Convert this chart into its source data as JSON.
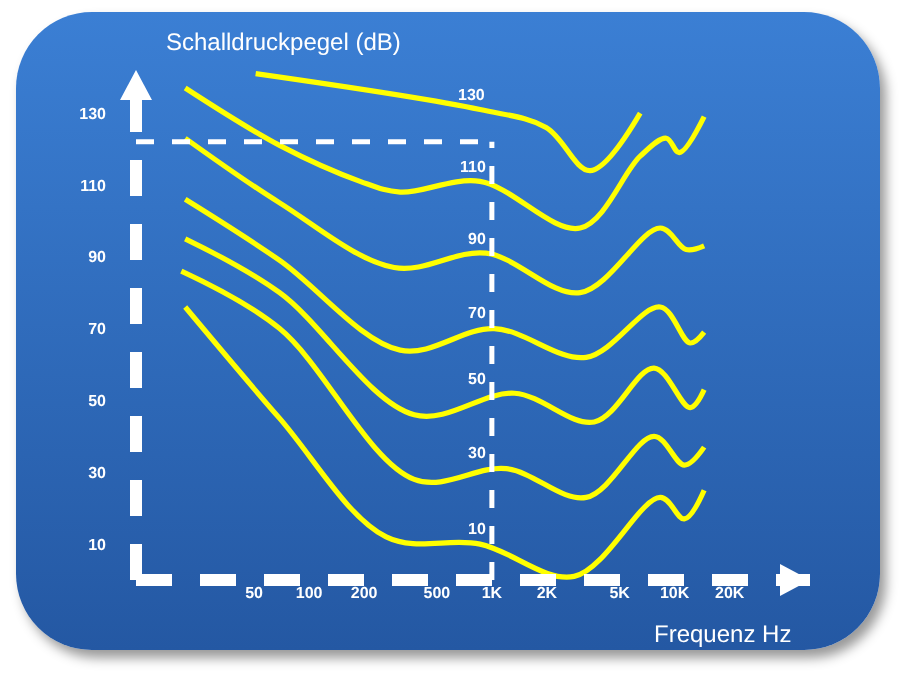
{
  "chart_data": {
    "type": "line",
    "xlabel": "Frequenz Hz",
    "ylabel": "Schalldruckpegel (dB)",
    "log": "x",
    "xlim": [
      11.3,
      55000
    ],
    "ylim": [
      0,
      142
    ],
    "xticks": [
      50,
      100,
      200,
      500,
      {
        "value": 1000,
        "label": "1K"
      },
      {
        "value": 2000,
        "label": "2K"
      },
      {
        "value": 5000,
        "label": "5K"
      },
      {
        "value": 10000,
        "label": "10K"
      },
      {
        "value": 20000,
        "label": "20K"
      }
    ],
    "yticks": [
      10,
      30,
      50,
      70,
      90,
      110,
      130
    ],
    "grid": false,
    "legend": false,
    "marker": "none",
    "line_style": "solid",
    "ref_lines": [
      {
        "axis": "x",
        "value": 1000,
        "color": "#ffffff",
        "line_style": "dashed"
      },
      {
        "axis": "y",
        "value": 122,
        "color": "#ffffff",
        "line_style": "dashed"
      }
    ],
    "series": [
      {
        "name": "130",
        "color": "#ffff00",
        "x": [
          51,
          862,
          1980,
          3450,
          6480
        ],
        "values": [
          141,
          131,
          126,
          114,
          130
        ]
      },
      {
        "name": "110",
        "color": "#ffff00",
        "x": [
          21,
          69,
          190,
          315,
          862,
          3040,
          6480,
          9000,
          10600,
          14500
        ],
        "values": [
          137,
          121,
          111,
          108,
          111,
          98,
          118,
          123,
          119,
          129
        ]
      },
      {
        "name": "90",
        "color": "#ffff00",
        "x": [
          21,
          69,
          292,
          930,
          3040,
          8340,
          11550,
          14500
        ],
        "values": [
          123,
          105,
          87,
          91,
          80,
          98,
          92,
          93
        ]
      },
      {
        "name": "70",
        "color": "#ffff00",
        "x": [
          21,
          69,
          315,
          1030,
          3280,
          8340,
          12150,
          14500
        ],
        "values": [
          106,
          89,
          64,
          70,
          62,
          76,
          66,
          69
        ]
      },
      {
        "name": "50",
        "color": "#ffff00",
        "x": [
          21,
          69,
          376,
          1330,
          3630,
          7720,
          12150,
          14500
        ],
        "values": [
          95,
          80,
          46,
          52,
          44,
          59,
          48,
          53
        ]
      },
      {
        "name": "30",
        "color": "#ffff00",
        "x": [
          20,
          69,
          376,
          1200,
          3280,
          7720,
          11300,
          14500
        ],
        "values": [
          86,
          70,
          28,
          31,
          23,
          40,
          32,
          37
        ]
      },
      {
        "name": "10",
        "color": "#ffff00",
        "x": [
          21,
          69,
          264,
          862,
          2820,
          8340,
          11300,
          14500
        ],
        "values": [
          76,
          45,
          12,
          10,
          1,
          23,
          17,
          25
        ]
      }
    ]
  }
}
